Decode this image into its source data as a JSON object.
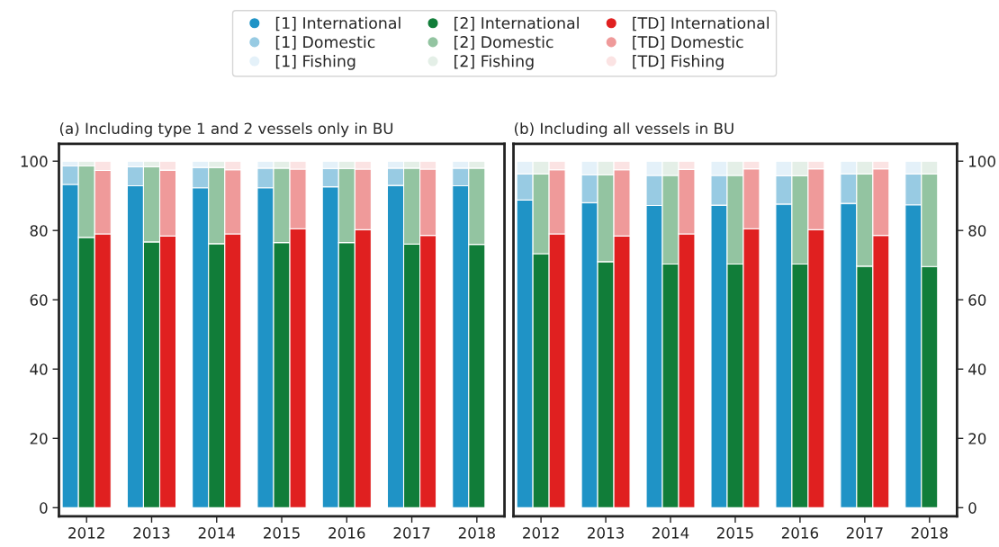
{
  "chart_data": [
    {
      "type": "bar",
      "stacked": true,
      "title": "(a) Including type 1 and 2 vessels only in BU",
      "categories": [
        null,
        "2012",
        null,
        null,
        null,
        "2013",
        null,
        null,
        null,
        "2014",
        null,
        null,
        null,
        "2015",
        null,
        null,
        null,
        "2016",
        null,
        null,
        null,
        "2017",
        null,
        null,
        null,
        "2018",
        null
      ],
      "ylim": [
        -2.5,
        105
      ],
      "yticks": [
        0,
        20,
        40,
        60,
        80,
        100
      ],
      "legend": "top",
      "series": [
        {
          "name": "[1] International",
          "color": "#1f93c6",
          "values": [
            93.3,
            null,
            null,
            null,
            92.9,
            null,
            null,
            null,
            92.3,
            null,
            null,
            null,
            92.3,
            null,
            null,
            null,
            92.6,
            null,
            null,
            null,
            93.0,
            null,
            null,
            null,
            92.9,
            null,
            null
          ]
        },
        {
          "name": "[1] Domestic",
          "color": "#98cbe3",
          "values": [
            5.3,
            null,
            null,
            null,
            5.5,
            null,
            null,
            null,
            5.9,
            null,
            null,
            null,
            5.7,
            null,
            null,
            null,
            5.3,
            null,
            null,
            null,
            5.0,
            null,
            null,
            null,
            5.1,
            null,
            null
          ]
        },
        {
          "name": "[1] Fishing",
          "color": "#e4f1f9",
          "values": [
            1.4,
            null,
            null,
            null,
            1.6,
            null,
            null,
            null,
            1.8,
            null,
            null,
            null,
            2.0,
            null,
            null,
            null,
            2.1,
            null,
            null,
            null,
            2.0,
            null,
            null,
            null,
            2.0,
            null,
            null
          ]
        },
        {
          "name": "[2] International",
          "color": "#117d39",
          "values": [
            null,
            78.0,
            null,
            null,
            null,
            76.7,
            null,
            null,
            null,
            76.2,
            null,
            null,
            null,
            76.5,
            null,
            null,
            null,
            76.5,
            null,
            null,
            null,
            76.1,
            null,
            null,
            null,
            76.0,
            null
          ]
        },
        {
          "name": "[2] Domestic",
          "color": "#93c4a1",
          "values": [
            null,
            20.6,
            null,
            null,
            null,
            21.7,
            null,
            null,
            null,
            22.0,
            null,
            null,
            null,
            21.5,
            null,
            null,
            null,
            21.4,
            null,
            null,
            null,
            21.9,
            null,
            null,
            null,
            22.0,
            null
          ]
        },
        {
          "name": "[2] Fishing",
          "color": "#e4efe7",
          "values": [
            null,
            1.4,
            null,
            null,
            null,
            1.6,
            null,
            null,
            null,
            1.8,
            null,
            null,
            null,
            2.0,
            null,
            null,
            null,
            2.1,
            null,
            null,
            null,
            2.0,
            null,
            null,
            null,
            2.0,
            null
          ]
        },
        {
          "name": "[TD] International",
          "color": "#e02020",
          "values": [
            null,
            null,
            79.0,
            null,
            null,
            null,
            78.4,
            null,
            null,
            null,
            79.0,
            null,
            null,
            null,
            80.5,
            null,
            null,
            null,
            80.2,
            null,
            null,
            null,
            78.6,
            null,
            null,
            null,
            null
          ]
        },
        {
          "name": "[TD] Domestic",
          "color": "#ef9a9a",
          "values": [
            null,
            null,
            18.3,
            null,
            null,
            null,
            19.0,
            null,
            null,
            null,
            18.5,
            null,
            null,
            null,
            17.2,
            null,
            null,
            null,
            17.5,
            null,
            null,
            null,
            19.1,
            null,
            null,
            null,
            null
          ]
        },
        {
          "name": "[TD] Fishing",
          "color": "#fbe3e3",
          "values": [
            null,
            null,
            2.7,
            null,
            null,
            null,
            2.6,
            null,
            null,
            null,
            2.5,
            null,
            null,
            null,
            2.3,
            null,
            null,
            null,
            2.3,
            null,
            null,
            null,
            2.3,
            null,
            null,
            null,
            null
          ]
        }
      ]
    },
    {
      "type": "bar",
      "stacked": true,
      "title": "(b) Including all vessels in BU",
      "categories": [
        null,
        "2012",
        null,
        null,
        null,
        "2013",
        null,
        null,
        null,
        "2014",
        null,
        null,
        null,
        "2015",
        null,
        null,
        null,
        "2016",
        null,
        null,
        null,
        "2017",
        null,
        null,
        null,
        "2018",
        null
      ],
      "ylim": [
        -2.5,
        105
      ],
      "yticks": [
        0,
        20,
        40,
        60,
        80,
        100
      ],
      "series": [
        {
          "color": "#1f93c6",
          "values": [
            88.8,
            null,
            null,
            null,
            88.0,
            null,
            null,
            null,
            87.2,
            null,
            null,
            null,
            87.3,
            null,
            null,
            null,
            87.6,
            null,
            null,
            null,
            87.8,
            null,
            null,
            null,
            87.4,
            null,
            null
          ]
        },
        {
          "color": "#98cbe3",
          "values": [
            7.5,
            null,
            null,
            null,
            8.1,
            null,
            null,
            null,
            8.7,
            null,
            null,
            null,
            8.6,
            null,
            null,
            null,
            8.2,
            null,
            null,
            null,
            8.5,
            null,
            null,
            null,
            8.9,
            null,
            null
          ]
        },
        {
          "color": "#e4f1f9",
          "values": [
            3.7,
            null,
            null,
            null,
            3.9,
            null,
            null,
            null,
            4.1,
            null,
            null,
            null,
            4.1,
            null,
            null,
            null,
            4.2,
            null,
            null,
            null,
            3.7,
            null,
            null,
            null,
            3.7,
            null,
            null
          ]
        },
        {
          "color": "#117d39",
          "values": [
            null,
            73.3,
            null,
            null,
            null,
            71.0,
            null,
            null,
            null,
            70.3,
            null,
            null,
            null,
            70.3,
            null,
            null,
            null,
            70.3,
            null,
            null,
            null,
            69.7,
            null,
            null,
            null,
            69.6,
            null
          ]
        },
        {
          "color": "#93c4a1",
          "values": [
            null,
            23.0,
            null,
            null,
            null,
            25.1,
            null,
            null,
            null,
            25.6,
            null,
            null,
            null,
            25.6,
            null,
            null,
            null,
            25.5,
            null,
            null,
            null,
            26.6,
            null,
            null,
            null,
            26.7,
            null
          ]
        },
        {
          "color": "#e4efe7",
          "values": [
            null,
            3.7,
            null,
            null,
            null,
            3.9,
            null,
            null,
            null,
            4.1,
            null,
            null,
            null,
            4.1,
            null,
            null,
            null,
            4.2,
            null,
            null,
            null,
            3.7,
            null,
            null,
            null,
            3.7,
            null
          ]
        },
        {
          "color": "#e02020",
          "values": [
            null,
            null,
            79.0,
            null,
            null,
            null,
            78.4,
            null,
            null,
            null,
            79.0,
            null,
            null,
            null,
            80.5,
            null,
            null,
            null,
            80.2,
            null,
            null,
            null,
            78.6,
            null,
            null,
            null,
            null
          ]
        },
        {
          "color": "#ef9a9a",
          "values": [
            null,
            null,
            18.5,
            null,
            null,
            null,
            19.1,
            null,
            null,
            null,
            18.6,
            null,
            null,
            null,
            17.3,
            null,
            null,
            null,
            17.6,
            null,
            null,
            null,
            19.2,
            null,
            null,
            null,
            null
          ]
        },
        {
          "color": "#fbe3e3",
          "values": [
            null,
            null,
            2.5,
            null,
            null,
            null,
            2.5,
            null,
            null,
            null,
            2.4,
            null,
            null,
            null,
            2.2,
            null,
            null,
            null,
            2.2,
            null,
            null,
            null,
            2.2,
            null,
            null,
            null,
            null
          ]
        }
      ]
    }
  ]
}
